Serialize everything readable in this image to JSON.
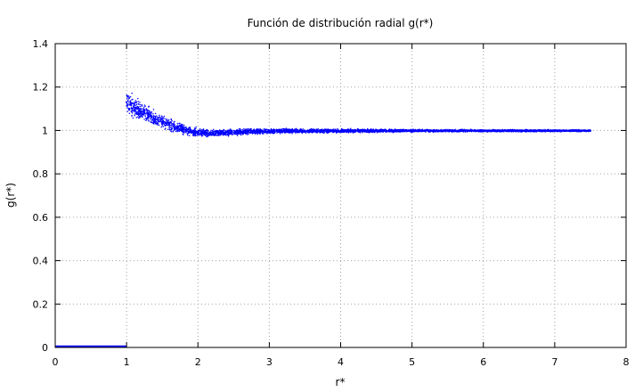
{
  "chart_data": {
    "type": "scatter",
    "title": "Función de distribución radial g(r*)",
    "xlabel": "r*",
    "ylabel": "g(r*)",
    "xlim": [
      0,
      8
    ],
    "ylim": [
      0,
      1.4
    ],
    "x_ticks": [
      "0",
      "1",
      "2",
      "3",
      "4",
      "5",
      "6",
      "7",
      "8"
    ],
    "y_ticks": [
      "0",
      "0.2",
      "0.4",
      "0.6",
      "0.8",
      "1",
      "1.2",
      "1.4"
    ],
    "grid": true,
    "point_color": "#0000ff",
    "series": [
      {
        "points": [
          [
            0.0,
            0.0
          ],
          [
            0.5,
            0.0
          ],
          [
            1.0,
            0.0
          ],
          [
            1.0,
            1.13
          ],
          [
            1.05,
            1.12
          ],
          [
            1.1,
            1.11
          ],
          [
            1.15,
            1.1
          ],
          [
            1.2,
            1.09
          ],
          [
            1.25,
            1.08
          ],
          [
            1.3,
            1.07
          ],
          [
            1.35,
            1.06
          ],
          [
            1.4,
            1.05
          ],
          [
            1.5,
            1.04
          ],
          [
            1.6,
            1.025
          ],
          [
            1.7,
            1.015
          ],
          [
            1.8,
            1.005
          ],
          [
            1.9,
            0.995
          ],
          [
            2.0,
            0.99
          ],
          [
            2.1,
            0.988
          ],
          [
            2.2,
            0.988
          ],
          [
            2.4,
            0.99
          ],
          [
            2.6,
            0.993
          ],
          [
            2.8,
            0.995
          ],
          [
            3.0,
            0.997
          ],
          [
            3.5,
            0.998
          ],
          [
            4.0,
            0.998
          ],
          [
            4.5,
            0.999
          ],
          [
            5.0,
            0.999
          ],
          [
            5.5,
            0.999
          ],
          [
            6.0,
            0.999
          ],
          [
            6.5,
            0.999
          ],
          [
            7.0,
            0.999
          ],
          [
            7.5,
            0.999
          ]
        ],
        "scatter_amplitude": [
          [
            1.0,
            0.07
          ],
          [
            1.5,
            0.04
          ],
          [
            2.0,
            0.025
          ],
          [
            3.0,
            0.015
          ],
          [
            5.0,
            0.008
          ],
          [
            7.5,
            0.006
          ]
        ]
      }
    ]
  }
}
